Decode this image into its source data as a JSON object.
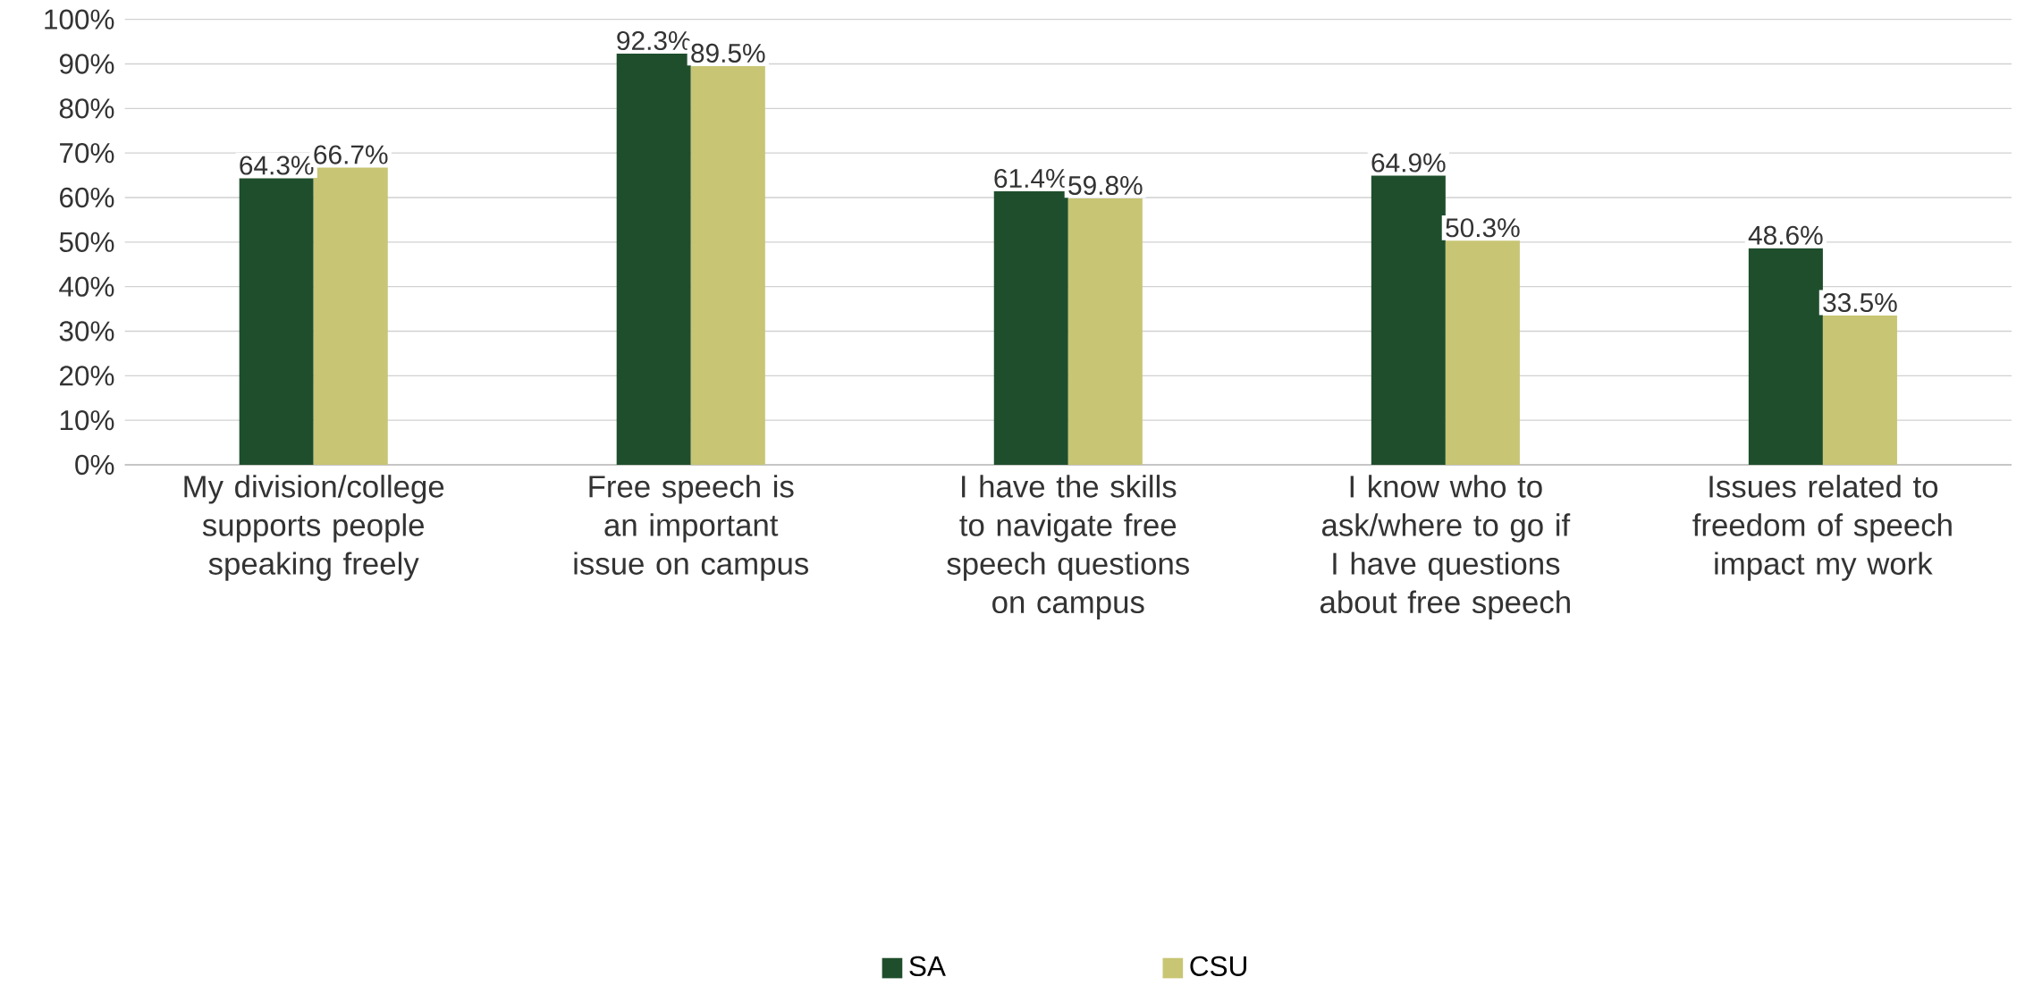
{
  "chart_data": {
    "type": "bar",
    "categories": [
      "My division/college supports people speaking freely",
      "Free speech is an important issue on campus",
      "I have the skills to navigate free speech questions on campus",
      "I know who to ask/where to go if I have questions about free speech",
      "Issues related to freedom of speech impact my work"
    ],
    "series": [
      {
        "name": "SA",
        "color": "#1f4e2c",
        "values": [
          64.3,
          92.3,
          61.4,
          64.9,
          48.6
        ],
        "value_labels": [
          "64.3%",
          "92.3%",
          "61.4%",
          "64.9%",
          "48.6%"
        ]
      },
      {
        "name": "CSU",
        "color": "#c8c574",
        "values": [
          66.7,
          89.5,
          59.8,
          50.3,
          33.5
        ],
        "value_labels": [
          "66.7%",
          "89.5%",
          "59.8%",
          "50.3%",
          "33.5%"
        ]
      }
    ],
    "ylim": [
      0,
      100
    ],
    "yticks": [
      {
        "value": 0,
        "label": "0%"
      },
      {
        "value": 10,
        "label": "10%"
      },
      {
        "value": 20,
        "label": "20%"
      },
      {
        "value": 30,
        "label": "30%"
      },
      {
        "value": 40,
        "label": "40%"
      },
      {
        "value": 50,
        "label": "50%"
      },
      {
        "value": 60,
        "label": "60%"
      },
      {
        "value": 70,
        "label": "70%"
      },
      {
        "value": 80,
        "label": "80%"
      },
      {
        "value": 90,
        "label": "90%"
      },
      {
        "value": 100,
        "label": "100%"
      }
    ],
    "grid": "y",
    "legend": "bottom"
  }
}
